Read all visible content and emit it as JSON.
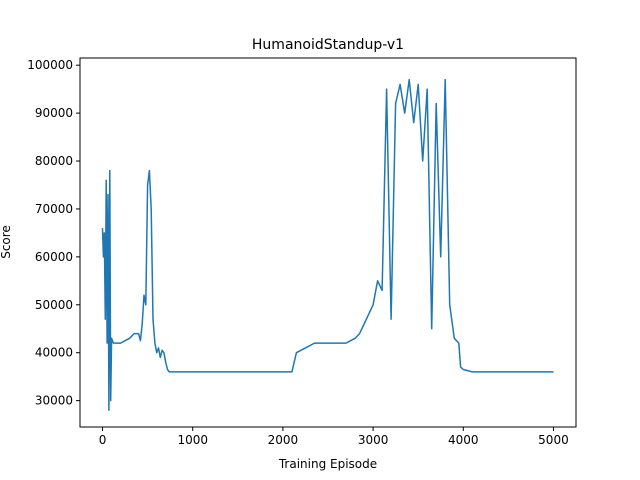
{
  "chart_data": {
    "type": "line",
    "title": "HumanoidStandup-v1",
    "xlabel": "Training Episode",
    "ylabel": "Score",
    "xlim": [
      -250,
      5250
    ],
    "ylim": [
      24500,
      101500
    ],
    "xticks": [
      0,
      1000,
      2000,
      3000,
      4000,
      5000
    ],
    "xtick_labels": [
      "0",
      "1000",
      "2000",
      "3000",
      "4000",
      "5000"
    ],
    "yticks": [
      30000,
      40000,
      50000,
      60000,
      70000,
      80000,
      90000,
      100000
    ],
    "ytick_labels": [
      "30000",
      "40000",
      "50000",
      "60000",
      "70000",
      "80000",
      "90000",
      "100000"
    ],
    "grid": false,
    "series": [
      {
        "color": "#1f77b4",
        "x": [
          0,
          10,
          20,
          30,
          40,
          50,
          60,
          70,
          80,
          90,
          100,
          120,
          150,
          200,
          250,
          300,
          350,
          400,
          420,
          440,
          460,
          480,
          500,
          520,
          540,
          560,
          580,
          600,
          620,
          640,
          660,
          680,
          700,
          720,
          740,
          760,
          800,
          900,
          1000,
          1200,
          1400,
          1600,
          1800,
          2000,
          2100,
          2150,
          2200,
          2250,
          2300,
          2350,
          2400,
          2450,
          2500,
          2550,
          2600,
          2650,
          2700,
          2750,
          2800,
          2850,
          2900,
          2950,
          3000,
          3050,
          3100,
          3150,
          3200,
          3250,
          3300,
          3350,
          3400,
          3450,
          3500,
          3550,
          3600,
          3650,
          3700,
          3750,
          3800,
          3850,
          3900,
          3950,
          3970,
          4000,
          4100,
          4200,
          4400,
          4600,
          4800,
          5000
        ],
        "y": [
          66000,
          60000,
          65000,
          47000,
          76000,
          42000,
          73000,
          28000,
          78000,
          30000,
          43000,
          42000,
          42000,
          42000,
          42500,
          43000,
          44000,
          44000,
          42500,
          46000,
          52000,
          50000,
          75000,
          78000,
          70000,
          47000,
          42000,
          40000,
          41000,
          39000,
          40500,
          40000,
          38000,
          36500,
          36000,
          36000,
          36000,
          36000,
          36000,
          36000,
          36000,
          36000,
          36000,
          36000,
          36000,
          40000,
          40500,
          41000,
          41500,
          42000,
          42000,
          42000,
          42000,
          42000,
          42000,
          42000,
          42000,
          42500,
          43000,
          44000,
          46000,
          48000,
          50000,
          55000,
          53000,
          95000,
          47000,
          92000,
          96000,
          90000,
          97000,
          88000,
          96000,
          80000,
          95000,
          45000,
          92000,
          60000,
          97000,
          50000,
          43000,
          42000,
          37000,
          36500,
          36000,
          36000,
          36000,
          36000,
          36000,
          36000
        ]
      }
    ]
  }
}
